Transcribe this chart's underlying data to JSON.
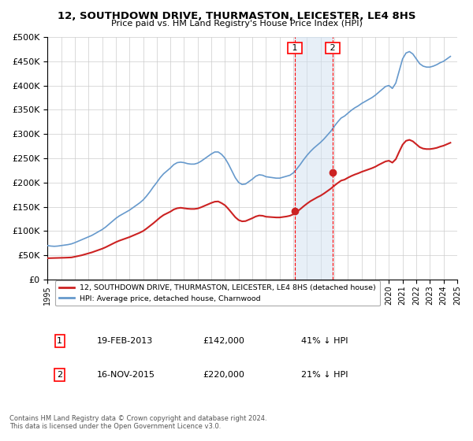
{
  "title": "12, SOUTHDOWN DRIVE, THURMASTON, LEICESTER, LE4 8HS",
  "subtitle": "Price paid vs. HM Land Registry's House Price Index (HPI)",
  "background_color": "#ffffff",
  "grid_color": "#cccccc",
  "ylim": [
    0,
    500000
  ],
  "yticks": [
    0,
    50000,
    100000,
    150000,
    200000,
    250000,
    300000,
    350000,
    400000,
    450000,
    500000
  ],
  "xlabel_years": [
    "1995",
    "1996",
    "1997",
    "1998",
    "1999",
    "2000",
    "2001",
    "2002",
    "2003",
    "2004",
    "2005",
    "2006",
    "2007",
    "2008",
    "2009",
    "2010",
    "2011",
    "2012",
    "2013",
    "2014",
    "2015",
    "2016",
    "2017",
    "2018",
    "2019",
    "2020",
    "2021",
    "2022",
    "2023",
    "2024",
    "2025"
  ],
  "hpi_color": "#6699cc",
  "price_color": "#cc2222",
  "sale1_date": 2013.12,
  "sale1_price": 142000,
  "sale1_label": "1",
  "sale2_date": 2015.88,
  "sale2_price": 220000,
  "sale2_label": "2",
  "shade_color": "#d0e0f0",
  "shade_alpha": 0.5,
  "legend_label_price": "12, SOUTHDOWN DRIVE, THURMASTON, LEICESTER, LE4 8HS (detached house)",
  "legend_label_hpi": "HPI: Average price, detached house, Charnwood",
  "table_rows": [
    {
      "num": "1",
      "date": "19-FEB-2013",
      "price": "£142,000",
      "pct": "41% ↓ HPI"
    },
    {
      "num": "2",
      "date": "16-NOV-2015",
      "price": "£220,000",
      "pct": "21% ↓ HPI"
    }
  ],
  "footnote": "Contains HM Land Registry data © Crown copyright and database right 2024.\nThis data is licensed under the Open Government Licence v3.0.",
  "hpi_data_x": [
    1995.0,
    1995.25,
    1995.5,
    1995.75,
    1996.0,
    1996.25,
    1996.5,
    1996.75,
    1997.0,
    1997.25,
    1997.5,
    1997.75,
    1998.0,
    1998.25,
    1998.5,
    1998.75,
    1999.0,
    1999.25,
    1999.5,
    1999.75,
    2000.0,
    2000.25,
    2000.5,
    2000.75,
    2001.0,
    2001.25,
    2001.5,
    2001.75,
    2002.0,
    2002.25,
    2002.5,
    2002.75,
    2003.0,
    2003.25,
    2003.5,
    2003.75,
    2004.0,
    2004.25,
    2004.5,
    2004.75,
    2005.0,
    2005.25,
    2005.5,
    2005.75,
    2006.0,
    2006.25,
    2006.5,
    2006.75,
    2007.0,
    2007.25,
    2007.5,
    2007.75,
    2008.0,
    2008.25,
    2008.5,
    2008.75,
    2009.0,
    2009.25,
    2009.5,
    2009.75,
    2010.0,
    2010.25,
    2010.5,
    2010.75,
    2011.0,
    2011.25,
    2011.5,
    2011.75,
    2012.0,
    2012.25,
    2012.5,
    2012.75,
    2013.0,
    2013.25,
    2013.5,
    2013.75,
    2014.0,
    2014.25,
    2014.5,
    2014.75,
    2015.0,
    2015.25,
    2015.5,
    2015.75,
    2016.0,
    2016.25,
    2016.5,
    2016.75,
    2017.0,
    2017.25,
    2017.5,
    2017.75,
    2018.0,
    2018.25,
    2018.5,
    2018.75,
    2019.0,
    2019.25,
    2019.5,
    2019.75,
    2020.0,
    2020.25,
    2020.5,
    2020.75,
    2021.0,
    2021.25,
    2021.5,
    2021.75,
    2022.0,
    2022.25,
    2022.5,
    2022.75,
    2023.0,
    2023.25,
    2023.5,
    2023.75,
    2024.0,
    2024.25,
    2024.5
  ],
  "hpi_data_y": [
    70000,
    69000,
    68500,
    69000,
    70000,
    71000,
    72000,
    73500,
    76000,
    79000,
    82000,
    85000,
    88000,
    91000,
    95000,
    99000,
    103000,
    108000,
    114000,
    120000,
    126000,
    131000,
    135000,
    139000,
    143000,
    148000,
    153000,
    158000,
    164000,
    172000,
    181000,
    191000,
    200000,
    210000,
    218000,
    224000,
    230000,
    237000,
    241000,
    242000,
    241000,
    239000,
    238000,
    238000,
    240000,
    244000,
    249000,
    254000,
    259000,
    263000,
    263000,
    258000,
    250000,
    238000,
    224000,
    210000,
    200000,
    196000,
    197000,
    202000,
    207000,
    213000,
    216000,
    215000,
    212000,
    211000,
    210000,
    209000,
    209000,
    211000,
    213000,
    215000,
    220000,
    228000,
    237000,
    247000,
    256000,
    264000,
    271000,
    277000,
    283000,
    290000,
    298000,
    306000,
    316000,
    325000,
    333000,
    337000,
    343000,
    349000,
    354000,
    358000,
    363000,
    367000,
    371000,
    375000,
    380000,
    386000,
    392000,
    398000,
    400000,
    394000,
    405000,
    430000,
    455000,
    467000,
    470000,
    465000,
    455000,
    445000,
    440000,
    438000,
    438000,
    440000,
    443000,
    447000,
    450000,
    455000,
    460000
  ],
  "price_data_x": [
    1995.0,
    1995.25,
    1995.5,
    1995.75,
    1996.0,
    1996.25,
    1996.5,
    1996.75,
    1997.0,
    1997.25,
    1997.5,
    1997.75,
    1998.0,
    1998.25,
    1998.5,
    1998.75,
    1999.0,
    1999.25,
    1999.5,
    1999.75,
    2000.0,
    2000.25,
    2000.5,
    2000.75,
    2001.0,
    2001.25,
    2001.5,
    2001.75,
    2002.0,
    2002.25,
    2002.5,
    2002.75,
    2003.0,
    2003.25,
    2003.5,
    2003.75,
    2004.0,
    2004.25,
    2004.5,
    2004.75,
    2005.0,
    2005.25,
    2005.5,
    2005.75,
    2006.0,
    2006.25,
    2006.5,
    2006.75,
    2007.0,
    2007.25,
    2007.5,
    2007.75,
    2008.0,
    2008.25,
    2008.5,
    2008.75,
    2009.0,
    2009.25,
    2009.5,
    2009.75,
    2010.0,
    2010.25,
    2010.5,
    2010.75,
    2011.0,
    2011.25,
    2011.5,
    2011.75,
    2012.0,
    2012.25,
    2012.5,
    2012.75,
    2013.0,
    2013.25,
    2013.5,
    2013.75,
    2014.0,
    2014.25,
    2014.5,
    2014.75,
    2015.0,
    2015.25,
    2015.5,
    2015.75,
    2016.0,
    2016.25,
    2016.5,
    2016.75,
    2017.0,
    2017.25,
    2017.5,
    2017.75,
    2018.0,
    2018.25,
    2018.5,
    2018.75,
    2019.0,
    2019.25,
    2019.5,
    2019.75,
    2020.0,
    2020.25,
    2020.5,
    2020.75,
    2021.0,
    2021.25,
    2021.5,
    2021.75,
    2022.0,
    2022.25,
    2022.5,
    2022.75,
    2023.0,
    2023.25,
    2023.5,
    2023.75,
    2024.0,
    2024.25,
    2024.5
  ],
  "price_data_y": [
    44000,
    44200,
    44400,
    44600,
    44800,
    45000,
    45300,
    45600,
    47000,
    48500,
    50000,
    52000,
    54000,
    56000,
    58500,
    61000,
    63500,
    66500,
    70000,
    73500,
    77000,
    80000,
    82500,
    85000,
    87500,
    90500,
    93500,
    96500,
    100000,
    105000,
    110500,
    116000,
    122000,
    128000,
    133000,
    136500,
    140000,
    144500,
    147000,
    148000,
    147000,
    146000,
    145500,
    145500,
    146500,
    149000,
    152000,
    155000,
    158000,
    160500,
    161000,
    157500,
    153000,
    145500,
    137000,
    128500,
    122500,
    120000,
    120500,
    123500,
    126500,
    130000,
    132000,
    131500,
    129500,
    129000,
    128500,
    128000,
    128000,
    129000,
    130000,
    131500,
    134500,
    139500,
    145000,
    151000,
    156500,
    161500,
    165500,
    169500,
    173000,
    177500,
    182500,
    187500,
    193500,
    199000,
    204000,
    206000,
    210000,
    213500,
    216500,
    219000,
    222000,
    224500,
    227000,
    229500,
    232500,
    236500,
    240000,
    243500,
    245000,
    241000,
    248000,
    263500,
    278000,
    286000,
    288000,
    285000,
    279000,
    273000,
    270000,
    269000,
    269000,
    270000,
    271500,
    274000,
    276000,
    279000,
    282000
  ]
}
